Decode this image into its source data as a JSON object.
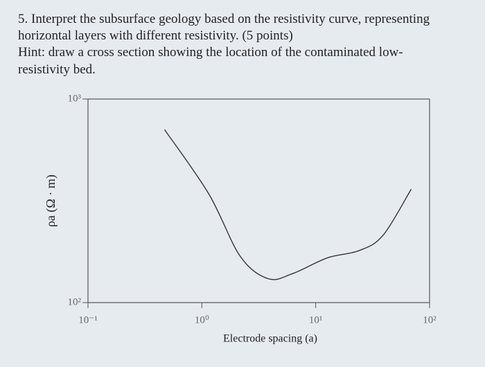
{
  "question": {
    "lines": [
      "5. Interpret the subsurface geology based on the resistivity curve, representing",
      "horizontal layers with different resistivity. (5 points)",
      "Hint: draw a cross section showing the location of the contaminated low-",
      "resistivity bed."
    ]
  },
  "chart_data": {
    "type": "line",
    "xlabel": "Electrode spacing (a)",
    "ylabel": "ρa (Ω · m)",
    "xscale": "log",
    "yscale": "log",
    "x": [
      0.47,
      1.15,
      2.17,
      3.83,
      6.3,
      12.7,
      24,
      39,
      69
    ],
    "values": [
      708,
      342,
      169,
      131,
      139,
      166,
      180,
      214,
      361
    ],
    "color": "#333333",
    "xlim": [
      0.1,
      100
    ],
    "xticks": [
      {
        "value": 0.1,
        "label": "10⁻¹"
      },
      {
        "value": 1,
        "label": "10⁰"
      },
      {
        "value": 10,
        "label": "10¹"
      },
      {
        "value": 100,
        "label": "10²"
      }
    ],
    "ylim": [
      100,
      1000
    ],
    "yticks": [
      {
        "value": 100,
        "label": "10²"
      },
      {
        "value": 1000,
        "label": "10³"
      }
    ]
  }
}
